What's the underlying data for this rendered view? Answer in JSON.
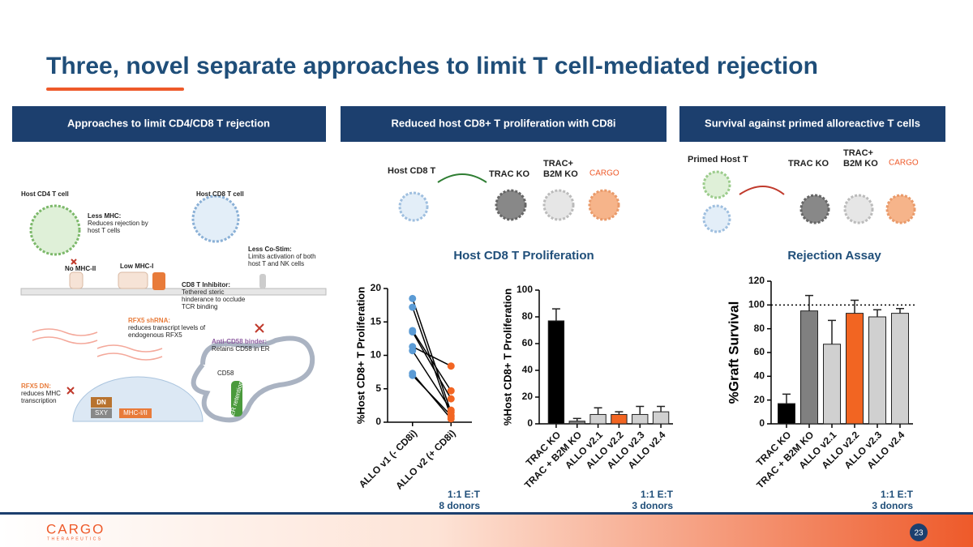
{
  "title": "Three, novel separate approaches to limit T cell-mediated rejection",
  "panels": [
    {
      "header": "Approaches to limit CD4/CD8 T rejection",
      "labels": [
        "Host CD4 T cell",
        "Host CD8 T cell",
        "Less MHC:",
        "Reduces rejection by",
        "host T cells",
        "No MHC-II",
        "Low MHC-I",
        "Less Co-Stim:",
        "Limits activation of both",
        "host T and NK cells",
        "CD8 T Inhibitor:",
        "Tethered steric",
        "hinderance to occlude",
        "TCR binding",
        "RFX5 shRNA:",
        "reduces transcript levels of",
        "endogenous RFX5",
        "Anti-CD58 binder:",
        "Retains CD58 in ER",
        "RFX5 DN:",
        "reduces MHC",
        "transcription",
        "DN",
        "SXY",
        "MHC-I/II",
        "CD58",
        "ER retention"
      ]
    },
    {
      "header": "Reduced host CD8+ T proliferation with CD8i",
      "labels": [
        "Host CD8 T",
        "TRAC KO",
        "TRAC+",
        "B2M KO",
        "CARGO"
      ],
      "chart_title": "Host CD8 T Proliferation"
    },
    {
      "header": "Survival against primed alloreactive T cells",
      "labels": [
        "Primed Host T",
        "TRAC KO",
        "TRAC+",
        "B2M KO",
        "CARGO"
      ],
      "chart_title": "Rejection Assay"
    }
  ],
  "chart_data": [
    {
      "type": "paired",
      "y_label": "%Host CD8+ T Proliferation",
      "categories": [
        "ALLO v1 (- CD8i)",
        "ALLO v2 (+ CD8i)"
      ],
      "colors": [
        "#5b9bd5",
        "#f26522"
      ],
      "series": [
        {
          "values": [
            18.5,
            1.5
          ]
        },
        {
          "values": [
            17.2,
            0.8
          ]
        },
        {
          "values": [
            13.7,
            4.7
          ]
        },
        {
          "values": [
            11.3,
            8.4
          ]
        },
        {
          "values": [
            10.7,
            1.8
          ]
        },
        {
          "values": [
            13.5,
            3.5
          ]
        },
        {
          "values": [
            7.3,
            0.5
          ]
        },
        {
          "values": [
            7.0,
            1.0
          ]
        }
      ],
      "ylim": [
        0,
        20
      ],
      "yticks": [
        0,
        5,
        10,
        15,
        20
      ],
      "annotations": [
        "1:1 E:T",
        "8 donors"
      ]
    },
    {
      "type": "bar",
      "y_label": "%Host CD8+ T Proliferation",
      "categories": [
        "TRAC KO",
        "TRAC + B2M KO",
        "ALLO v2.1",
        "ALLO v2.2",
        "ALLO v2.3",
        "ALLO v2.4"
      ],
      "values": [
        77,
        2,
        7,
        7,
        7,
        9
      ],
      "errors": [
        9,
        2,
        5,
        2,
        6,
        4
      ],
      "colors": [
        "#000000",
        "#808080",
        "#d0d0d0",
        "#f26522",
        "#d0d0d0",
        "#d0d0d0"
      ],
      "ylim": [
        0,
        100
      ],
      "yticks": [
        0,
        20,
        40,
        60,
        80,
        100
      ],
      "annotations": [
        "1:1 E:T",
        "3 donors"
      ]
    },
    {
      "type": "bar",
      "y_label": "%Graft Survival",
      "categories": [
        "TRAC KO",
        "TRAC + B2M KO",
        "ALLO v2.1",
        "ALLO v2.2",
        "ALLO v2.3",
        "ALLO v2.4"
      ],
      "values": [
        17,
        95,
        67,
        93,
        90,
        93
      ],
      "errors": [
        8,
        13,
        20,
        11,
        6,
        4
      ],
      "colors": [
        "#000000",
        "#808080",
        "#d0d0d0",
        "#f26522",
        "#d0d0d0",
        "#d0d0d0"
      ],
      "ylim": [
        0,
        120
      ],
      "yticks": [
        0,
        20,
        40,
        60,
        80,
        100,
        120
      ],
      "ref_line": 100,
      "annotations": [
        "1:1 E:T",
        "3 donors"
      ]
    }
  ],
  "footer": {
    "logo": "CARGO",
    "logo_sub": "THERAPEUTICS",
    "page": "23"
  }
}
